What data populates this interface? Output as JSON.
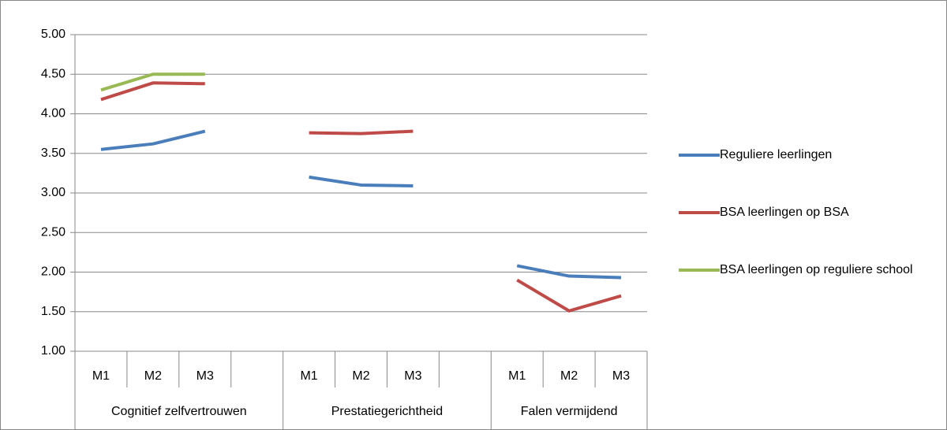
{
  "chart_data": {
    "type": "line",
    "categories": [
      "M1",
      "M2",
      "M3",
      null,
      "M1",
      "M2",
      "M3",
      null,
      "M1",
      "M2",
      "M3"
    ],
    "group_labels": [
      "Cognitief zelfvertrouwen",
      "Prestatiegerichtheid",
      "Falen vermijdend"
    ],
    "series": [
      {
        "name": "Reguliere leerlingen",
        "color": "#4a7ebb",
        "values": [
          3.55,
          3.62,
          3.78,
          null,
          3.2,
          3.1,
          3.09,
          null,
          2.08,
          1.95,
          1.93
        ]
      },
      {
        "name": "BSA leerlingen op BSA",
        "color": "#be4b48",
        "values": [
          4.18,
          4.39,
          4.38,
          null,
          3.76,
          3.75,
          3.78,
          null,
          1.9,
          1.51,
          1.7
        ]
      },
      {
        "name": "BSA leerlingen op  reguliere school",
        "color": "#98b954",
        "values": [
          4.3,
          4.5,
          4.5,
          null,
          null,
          null,
          null,
          null,
          null,
          null,
          null
        ]
      }
    ],
    "ylim": [
      1,
      5
    ],
    "yticks": [
      {
        "value": 1,
        "label": "1.00"
      },
      {
        "value": 1.5,
        "label": "1.50"
      },
      {
        "value": 2,
        "label": "2.00"
      },
      {
        "value": 2.5,
        "label": "2.50"
      },
      {
        "value": 3,
        "label": "3.00"
      },
      {
        "value": 3.5,
        "label": "3.50"
      },
      {
        "value": 4,
        "label": "4.00"
      },
      {
        "value": 4.5,
        "label": "4.50"
      },
      {
        "value": 5,
        "label": "5.00"
      }
    ],
    "grid": true,
    "legend": "right"
  }
}
